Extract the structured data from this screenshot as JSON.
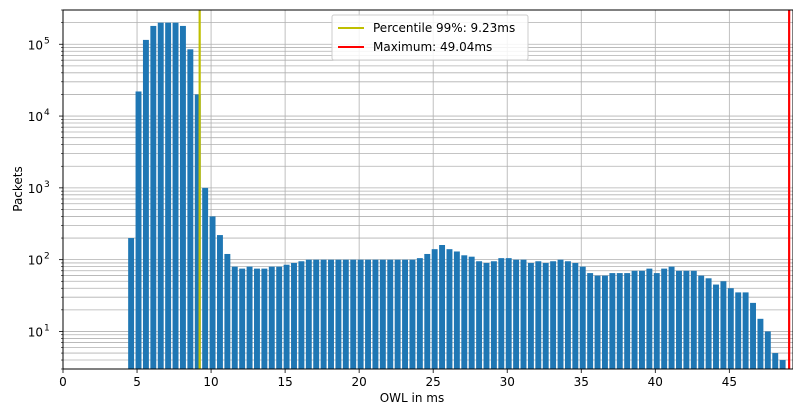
{
  "chart_data": {
    "type": "bar",
    "xlabel": "OWL in ms",
    "ylabel": "Packets",
    "xlim": [
      0,
      49.3
    ],
    "ylim": [
      3,
      300000
    ],
    "yscale": "log",
    "grid": true,
    "legend_position": "top-center",
    "bar_color": "#1f77b4",
    "bin_width": 0.4,
    "x_ticks": [
      0,
      5,
      10,
      15,
      20,
      25,
      30,
      35,
      40,
      45
    ],
    "y_ticks": [
      {
        "value": 10,
        "base": "10",
        "exp": "1"
      },
      {
        "value": 100,
        "base": "10",
        "exp": "2"
      },
      {
        "value": 1000,
        "base": "10",
        "exp": "3"
      },
      {
        "value": 10000,
        "base": "10",
        "exp": "4"
      },
      {
        "value": 100000,
        "base": "10",
        "exp": "5"
      }
    ],
    "x": [
      4.6,
      5.1,
      5.6,
      6.1,
      6.6,
      7.1,
      7.6,
      8.1,
      8.6,
      9.1,
      9.6,
      10.1,
      10.6,
      11.1,
      11.6,
      12.1,
      12.6,
      13.1,
      13.6,
      14.1,
      14.6,
      15.1,
      15.6,
      16.1,
      16.6,
      17.1,
      17.6,
      18.1,
      18.6,
      19.1,
      19.6,
      20.1,
      20.6,
      21.1,
      21.6,
      22.1,
      22.6,
      23.1,
      23.6,
      24.1,
      24.6,
      25.1,
      25.6,
      26.1,
      26.6,
      27.1,
      27.6,
      28.1,
      28.6,
      29.1,
      29.6,
      30.1,
      30.6,
      31.1,
      31.6,
      32.1,
      32.6,
      33.1,
      33.6,
      34.1,
      34.6,
      35.1,
      35.6,
      36.1,
      36.6,
      37.1,
      37.6,
      38.1,
      38.6,
      39.1,
      39.6,
      40.1,
      40.6,
      41.1,
      41.6,
      42.1,
      42.6,
      43.1,
      43.6,
      44.1,
      44.6,
      45.1,
      45.6,
      46.1,
      46.6,
      47.1,
      47.6,
      48.1,
      48.6
    ],
    "values": [
      200,
      22000,
      115000,
      180000,
      200000,
      200000,
      200000,
      180000,
      85000,
      20000,
      1000,
      400,
      220,
      120,
      80,
      75,
      80,
      75,
      75,
      80,
      80,
      85,
      90,
      95,
      100,
      100,
      100,
      100,
      100,
      100,
      100,
      100,
      100,
      100,
      100,
      100,
      100,
      100,
      100,
      105,
      120,
      140,
      160,
      140,
      130,
      115,
      110,
      95,
      90,
      95,
      105,
      105,
      100,
      100,
      90,
      95,
      90,
      95,
      100,
      95,
      90,
      80,
      65,
      60,
      60,
      65,
      65,
      65,
      70,
      70,
      75,
      65,
      75,
      80,
      70,
      70,
      70,
      60,
      55,
      45,
      50,
      40,
      35,
      35,
      25,
      15,
      10,
      5,
      4
    ],
    "reference_lines": [
      {
        "label": "Percentile 99%: 9.23ms",
        "x": 9.23,
        "color": "#bfbf00"
      },
      {
        "label": "Maximum: 49.04ms",
        "x": 49.04,
        "color": "#ff0000"
      }
    ]
  }
}
